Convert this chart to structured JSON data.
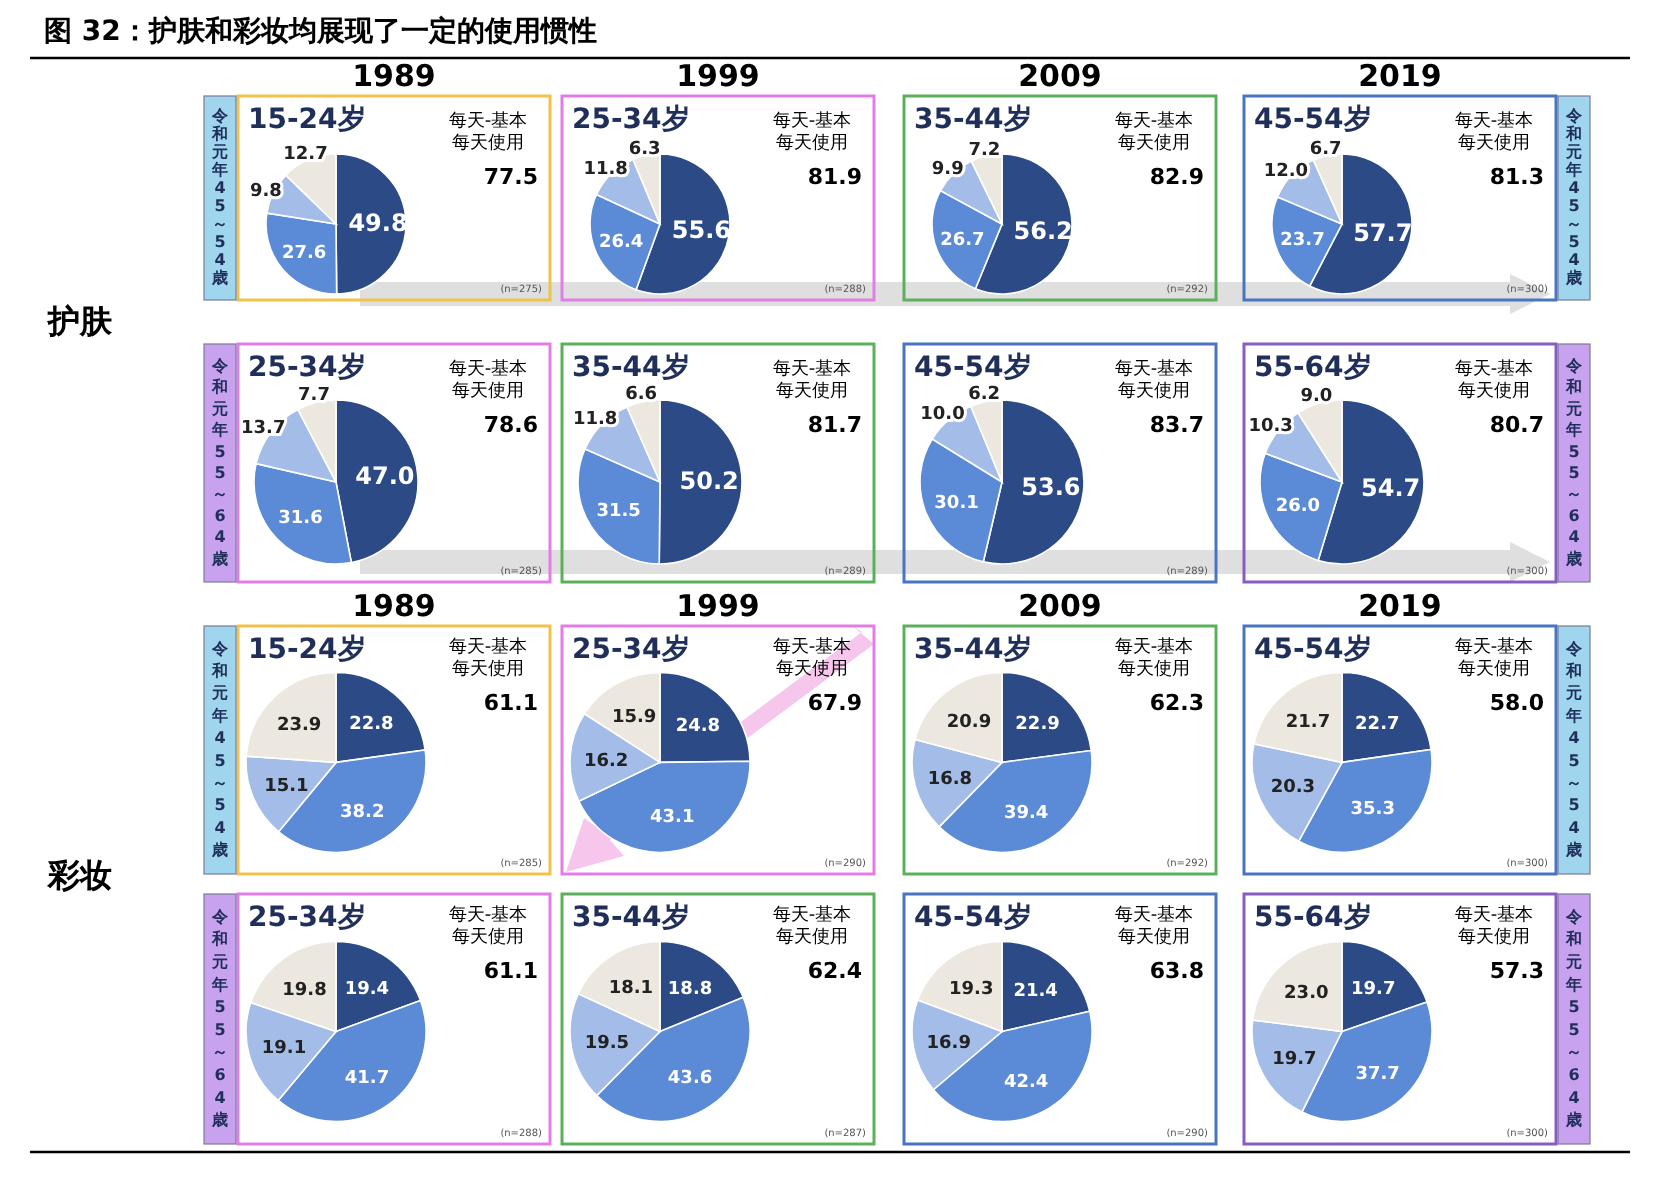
{
  "chart_data": [
    {
      "type": "pie",
      "title": "15-24岁",
      "subtitle": "1989",
      "categories": [
        null,
        null,
        null,
        null
      ],
      "values": [
        49.8,
        27.6,
        9.8,
        12.7
      ],
      "value_labels": [
        "49.8",
        "27.6",
        "9.8",
        "12.7"
      ],
      "colors": [
        "#2b4a86",
        "#5b8ad6",
        "#a3bde8",
        "#ece8df"
      ],
      "annotations": [
        "每天-基本",
        "每天使用",
        "77.5",
        "(n=275)",
        "图 32：护肤和彩妆均展现了一定的使用惯性",
        "护肤",
        "令和元年45～54歳"
      ]
    },
    {
      "type": "pie",
      "title": "25-34岁",
      "subtitle": "1999",
      "categories": [
        null,
        null,
        null,
        null
      ],
      "values": [
        55.6,
        26.4,
        11.8,
        6.3
      ],
      "value_labels": [
        "55.6",
        "26.4",
        "11.8",
        "6.3"
      ],
      "colors": [
        "#2b4a86",
        "#5b8ad6",
        "#a3bde8",
        "#ece8df"
      ],
      "annotations": [
        "每天-基本",
        "每天使用",
        "81.9",
        "(n=288)"
      ]
    },
    {
      "type": "pie",
      "title": "35-44岁",
      "subtitle": "2009",
      "categories": [
        null,
        null,
        null,
        null
      ],
      "values": [
        56.2,
        26.7,
        9.9,
        7.2
      ],
      "value_labels": [
        "56.2",
        "26.7",
        "9.9",
        "7.2"
      ],
      "colors": [
        "#2b4a86",
        "#5b8ad6",
        "#a3bde8",
        "#ece8df"
      ],
      "annotations": [
        "每天-基本",
        "每天使用",
        "82.9",
        "(n=292)"
      ]
    },
    {
      "type": "pie",
      "title": "45-54岁",
      "subtitle": "2019",
      "categories": [
        null,
        null,
        null,
        null
      ],
      "values": [
        57.7,
        23.7,
        12.0,
        6.7
      ],
      "value_labels": [
        "57.7",
        "23.7",
        "12.0",
        "6.7"
      ],
      "colors": [
        "#2b4a86",
        "#5b8ad6",
        "#a3bde8",
        "#ece8df"
      ],
      "annotations": [
        "每天-基本",
        "每天使用",
        "81.3",
        "(n=300)",
        "令和元年45～54歳"
      ]
    },
    {
      "type": "pie",
      "title": "25-34岁",
      "categories": [
        null,
        null,
        null,
        null
      ],
      "values": [
        47.0,
        31.6,
        13.7,
        7.7
      ],
      "value_labels": [
        "47.0",
        "31.6",
        "13.7",
        "7.7"
      ],
      "colors": [
        "#2b4a86",
        "#5b8ad6",
        "#a3bde8",
        "#ece8df"
      ],
      "annotations": [
        "每天-基本",
        "每天使用",
        "78.6",
        "(n=285)",
        "令和元年55～64歳"
      ]
    },
    {
      "type": "pie",
      "title": "35-44岁",
      "categories": [
        null,
        null,
        null,
        null
      ],
      "values": [
        50.2,
        31.5,
        11.8,
        6.6
      ],
      "value_labels": [
        "50.2",
        "31.5",
        "11.8",
        "6.6"
      ],
      "colors": [
        "#2b4a86",
        "#5b8ad6",
        "#a3bde8",
        "#ece8df"
      ],
      "annotations": [
        "每天-基本",
        "每天使用",
        "81.7",
        "(n=289)"
      ]
    },
    {
      "type": "pie",
      "title": "45-54岁",
      "categories": [
        null,
        null,
        null,
        null
      ],
      "values": [
        53.6,
        30.1,
        10.0,
        6.2
      ],
      "value_labels": [
        "53.6",
        "30.1",
        "10.0",
        "6.2"
      ],
      "colors": [
        "#2b4a86",
        "#5b8ad6",
        "#a3bde8",
        "#ece8df"
      ],
      "annotations": [
        "每天-基本",
        "每天使用",
        "83.7",
        "(n=289)"
      ]
    },
    {
      "type": "pie",
      "title": "55-64岁",
      "categories": [
        null,
        null,
        null,
        null
      ],
      "values": [
        54.7,
        26.0,
        10.3,
        9.0
      ],
      "value_labels": [
        "54.7",
        "26.0",
        "10.3",
        "9.0"
      ],
      "colors": [
        "#2b4a86",
        "#5b8ad6",
        "#a3bde8",
        "#ece8df"
      ],
      "annotations": [
        "每天-基本",
        "每天使用",
        "80.7",
        "(n=300)",
        "令和元年55～64歳"
      ]
    },
    {
      "type": "pie",
      "title": "15-24岁",
      "subtitle": "1989",
      "categories": [
        null,
        null,
        null,
        null
      ],
      "values": [
        22.8,
        38.2,
        15.1,
        23.9
      ],
      "value_labels": [
        "22.8",
        "38.2",
        "15.1",
        "23.9"
      ],
      "colors": [
        "#2b4a86",
        "#5b8ad6",
        "#a3bde8",
        "#ece8df"
      ],
      "annotations": [
        "每天-基本",
        "每天使用",
        "61.1",
        "(n=285)",
        "彩妆",
        "令和元年45～54歳"
      ]
    },
    {
      "type": "pie",
      "title": "25-34岁",
      "subtitle": "1999",
      "categories": [
        null,
        null,
        null,
        null
      ],
      "values": [
        24.8,
        43.1,
        16.2,
        15.9
      ],
      "value_labels": [
        "24.8",
        "43.1",
        "16.2",
        "15.9"
      ],
      "colors": [
        "#2b4a86",
        "#5b8ad6",
        "#a3bde8",
        "#ece8df"
      ],
      "annotations": [
        "每天-基本",
        "每天使用",
        "67.9",
        "(n=290)"
      ]
    },
    {
      "type": "pie",
      "title": "35-44岁",
      "subtitle": "2009",
      "categories": [
        null,
        null,
        null,
        null
      ],
      "values": [
        22.9,
        39.4,
        16.8,
        20.9
      ],
      "value_labels": [
        "22.9",
        "39.4",
        "16.8",
        "20.9"
      ],
      "colors": [
        "#2b4a86",
        "#5b8ad6",
        "#a3bde8",
        "#ece8df"
      ],
      "annotations": [
        "每天-基本",
        "每天使用",
        "62.3",
        "(n=292)"
      ]
    },
    {
      "type": "pie",
      "title": "45-54岁",
      "subtitle": "2019",
      "categories": [
        null,
        null,
        null,
        null
      ],
      "values": [
        22.7,
        35.3,
        20.3,
        21.7
      ],
      "value_labels": [
        "22.7",
        "35.3",
        "20.3",
        "21.7"
      ],
      "colors": [
        "#2b4a86",
        "#5b8ad6",
        "#a3bde8",
        "#ece8df"
      ],
      "annotations": [
        "每天-基本",
        "每天使用",
        "58.0",
        "(n=300)",
        "令和元年45～54歳"
      ]
    },
    {
      "type": "pie",
      "title": "25-34岁",
      "categories": [
        null,
        null,
        null,
        null
      ],
      "values": [
        19.4,
        41.7,
        19.1,
        19.8
      ],
      "value_labels": [
        "19.4",
        "41.7",
        "19.1",
        "19.8"
      ],
      "colors": [
        "#2b4a86",
        "#5b8ad6",
        "#a3bde8",
        "#ece8df"
      ],
      "annotations": [
        "每天-基本",
        "每天使用",
        "61.1",
        "(n=288)",
        "令和元年55～64歳"
      ]
    },
    {
      "type": "pie",
      "title": "35-44岁",
      "categories": [
        null,
        null,
        null,
        null
      ],
      "values": [
        18.8,
        43.6,
        19.5,
        18.1
      ],
      "value_labels": [
        "18.8",
        "43.6",
        "19.5",
        "18.1"
      ],
      "colors": [
        "#2b4a86",
        "#5b8ad6",
        "#a3bde8",
        "#ece8df"
      ],
      "annotations": [
        "每天-基本",
        "每天使用",
        "62.4",
        "(n=287)"
      ]
    },
    {
      "type": "pie",
      "title": "45-54岁",
      "categories": [
        null,
        null,
        null,
        null
      ],
      "values": [
        21.4,
        42.4,
        16.9,
        19.3
      ],
      "value_labels": [
        "21.4",
        "42.4",
        "16.9",
        "19.3"
      ],
      "colors": [
        "#2b4a86",
        "#5b8ad6",
        "#a3bde8",
        "#ece8df"
      ],
      "annotations": [
        "每天-基本",
        "每天使用",
        "63.8",
        "(n=290)"
      ]
    },
    {
      "type": "pie",
      "title": "55-64岁",
      "categories": [
        null,
        null,
        null,
        null
      ],
      "values": [
        19.7,
        37.7,
        19.7,
        23.0
      ],
      "value_labels": [
        "19.7",
        "37.7",
        "19.7",
        "23.0"
      ],
      "colors": [
        "#2b4a86",
        "#5b8ad6",
        "#a3bde8",
        "#ece8df"
      ],
      "annotations": [
        "每天-基本",
        "每天使用",
        "57.3",
        "(n=300)",
        "令和元年55～64歳"
      ]
    }
  ]
}
